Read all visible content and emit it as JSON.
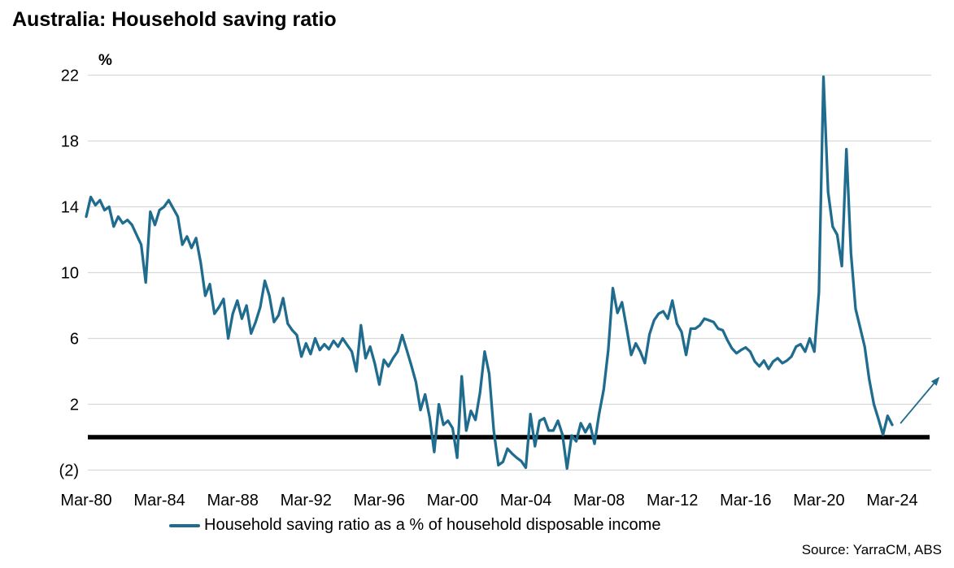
{
  "header": {
    "title": "Australia: Household saving ratio"
  },
  "legend": {
    "label": "Household saving ratio as a % of household disposable income"
  },
  "footer": {
    "source": "Source: YarraCM, ABS"
  },
  "colors": {
    "line": "#1F6C8E",
    "grid": "#D9D9D9",
    "zero_line": "#000000",
    "text": "#000000",
    "background": "#FFFFFF"
  },
  "chart_data": {
    "type": "line",
    "title": "Australia: Household saving ratio",
    "unit_label": "%",
    "xlabel": "",
    "ylabel": "%",
    "frequency": "quarterly",
    "start_period": "Mar-1980",
    "end_period": "Mar-2024",
    "ylim": [
      -2.8,
      23
    ],
    "grid": "horizontal",
    "zero_baseline_bold": true,
    "legend_position": "bottom",
    "y_ticks": [
      22,
      18,
      14,
      10,
      6,
      2,
      -2
    ],
    "y_tick_labels": [
      "22",
      "18",
      "14",
      "10",
      "6",
      "2",
      "(2)"
    ],
    "x_tick_labels": [
      "Mar-80",
      "Mar-84",
      "Mar-88",
      "Mar-92",
      "Mar-96",
      "Mar-00",
      "Mar-04",
      "Mar-08",
      "Mar-12",
      "Mar-16",
      "Mar-20",
      "Mar-24"
    ],
    "x_quarters_per_tick": 16,
    "series": [
      {
        "name": "Household saving ratio as a % of household disposable income",
        "color": "#1F6C8E",
        "values": [
          13.4,
          14.6,
          14.1,
          14.4,
          13.8,
          14.0,
          12.8,
          13.4,
          13.0,
          13.2,
          12.9,
          12.3,
          11.7,
          9.4,
          13.7,
          12.9,
          13.8,
          14.0,
          14.4,
          13.9,
          13.4,
          11.7,
          12.2,
          11.5,
          12.1,
          10.6,
          8.6,
          9.3,
          7.5,
          7.9,
          8.4,
          6.0,
          7.5,
          8.3,
          7.2,
          8.0,
          6.3,
          7.0,
          7.9,
          9.5,
          8.6,
          7.0,
          7.4,
          8.45,
          6.9,
          6.5,
          6.2,
          4.9,
          5.7,
          5.05,
          6.0,
          5.3,
          5.65,
          5.35,
          5.85,
          5.5,
          6.0,
          5.6,
          5.2,
          4.0,
          6.8,
          4.8,
          5.5,
          4.5,
          3.2,
          4.7,
          4.3,
          4.8,
          5.2,
          6.2,
          5.3,
          4.35,
          3.35,
          1.65,
          2.6,
          1.2,
          -0.9,
          2.0,
          0.75,
          1.0,
          0.55,
          -1.25,
          3.7,
          0.4,
          1.6,
          1.05,
          2.7,
          5.2,
          3.85,
          0.4,
          -1.7,
          -1.5,
          -0.7,
          -1.0,
          -1.25,
          -1.45,
          -1.85,
          1.4,
          -0.55,
          1.0,
          1.15,
          0.4,
          0.4,
          1.0,
          0.15,
          -1.9,
          0.1,
          -0.25,
          0.85,
          0.3,
          0.8,
          -0.4,
          1.4,
          2.9,
          5.3,
          9.05,
          7.55,
          8.2,
          6.65,
          5.0,
          5.7,
          5.2,
          4.5,
          6.25,
          7.1,
          7.5,
          7.65,
          7.2,
          8.3,
          6.9,
          6.4,
          5.0,
          6.6,
          6.6,
          6.8,
          7.2,
          7.1,
          7.0,
          6.6,
          6.5,
          5.9,
          5.4,
          5.1,
          5.3,
          5.45,
          5.2,
          4.6,
          4.3,
          4.65,
          4.15,
          4.6,
          4.8,
          4.5,
          4.65,
          4.9,
          5.5,
          5.65,
          5.2,
          6.0,
          5.2,
          8.8,
          21.9,
          14.9,
          12.8,
          12.3,
          10.4,
          17.5,
          11.2,
          7.8,
          6.65,
          5.5,
          3.5,
          2.0,
          1.1,
          0.15,
          1.3,
          0.75
        ]
      }
    ],
    "annotation_arrow": {
      "meaning": "expected rise in saving ratio",
      "from": {
        "quarter_index": 177.8,
        "value": 0.84
      },
      "to": {
        "quarter_index": 185.1,
        "value": 3.26
      }
    }
  }
}
